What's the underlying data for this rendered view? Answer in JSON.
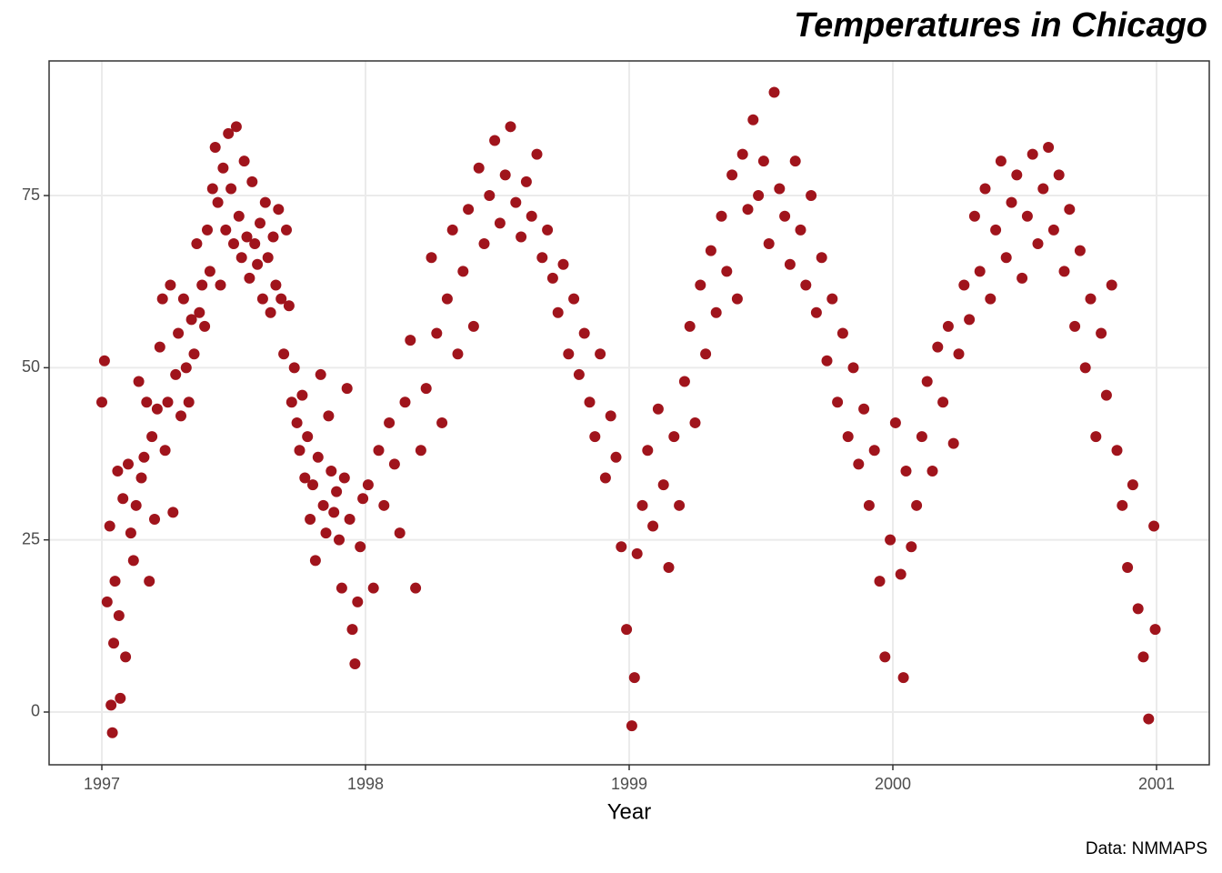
{
  "chart_data": {
    "type": "scatter",
    "title": "Temperatures in Chicago",
    "x_label": "Year",
    "caption": "Data: NMMAPS",
    "color": "#a0141c",
    "grid": true,
    "xlim": [
      1996.8,
      2001.2
    ],
    "ylim": [
      -7.66,
      94.55
    ],
    "xticks": [
      1997,
      1998,
      1999,
      2000,
      2001
    ],
    "yticks": [
      0,
      25,
      50,
      75
    ],
    "x": [
      1997.0,
      1997.01,
      1997.02,
      1997.03,
      1997.035,
      1997.04,
      1997.045,
      1997.05,
      1997.06,
      1997.065,
      1997.07,
      1997.08,
      1997.09,
      1997.1,
      1997.11,
      1997.12,
      1997.13,
      1997.14,
      1997.15,
      1997.16,
      1997.17,
      1997.18,
      1997.19,
      1997.2,
      1997.21,
      1997.22,
      1997.23,
      1997.24,
      1997.25,
      1997.26,
      1997.27,
      1997.28,
      1997.29,
      1997.3,
      1997.31,
      1997.32,
      1997.33,
      1997.34,
      1997.35,
      1997.36,
      1997.37,
      1997.38,
      1997.39,
      1997.4,
      1997.41,
      1997.42,
      1997.43,
      1997.44,
      1997.45,
      1997.46,
      1997.47,
      1997.48,
      1997.49,
      1997.5,
      1997.51,
      1997.52,
      1997.53,
      1997.54,
      1997.55,
      1997.56,
      1997.57,
      1997.58,
      1997.59,
      1997.6,
      1997.61,
      1997.62,
      1997.63,
      1997.64,
      1997.65,
      1997.66,
      1997.67,
      1997.68,
      1997.69,
      1997.7,
      1997.71,
      1997.72,
      1997.73,
      1997.74,
      1997.75,
      1997.76,
      1997.77,
      1997.78,
      1997.79,
      1997.8,
      1997.81,
      1997.82,
      1997.83,
      1997.84,
      1997.85,
      1997.86,
      1997.87,
      1997.88,
      1997.89,
      1997.9,
      1997.91,
      1997.92,
      1997.93,
      1997.94,
      1997.95,
      1997.96,
      1997.97,
      1997.98,
      1997.99,
      1998.01,
      1998.03,
      1998.05,
      1998.07,
      1998.09,
      1998.11,
      1998.13,
      1998.15,
      1998.17,
      1998.19,
      1998.21,
      1998.23,
      1998.25,
      1998.27,
      1998.29,
      1998.31,
      1998.33,
      1998.35,
      1998.37,
      1998.39,
      1998.41,
      1998.43,
      1998.45,
      1998.47,
      1998.49,
      1998.51,
      1998.53,
      1998.55,
      1998.57,
      1998.59,
      1998.61,
      1998.63,
      1998.65,
      1998.67,
      1998.69,
      1998.71,
      1998.73,
      1998.75,
      1998.77,
      1998.79,
      1998.81,
      1998.83,
      1998.85,
      1998.87,
      1998.89,
      1998.91,
      1998.93,
      1998.95,
      1998.97,
      1998.99,
      1999.01,
      1999.02,
      1999.03,
      1999.05,
      1999.07,
      1999.09,
      1999.11,
      1999.13,
      1999.15,
      1999.17,
      1999.19,
      1999.21,
      1999.23,
      1999.25,
      1999.27,
      1999.29,
      1999.31,
      1999.33,
      1999.35,
      1999.37,
      1999.39,
      1999.41,
      1999.43,
      1999.45,
      1999.47,
      1999.49,
      1999.51,
      1999.53,
      1999.55,
      1999.57,
      1999.59,
      1999.61,
      1999.63,
      1999.65,
      1999.67,
      1999.69,
      1999.71,
      1999.73,
      1999.75,
      1999.77,
      1999.79,
      1999.81,
      1999.83,
      1999.85,
      1999.87,
      1999.89,
      1999.91,
      1999.93,
      1999.95,
      1999.97,
      1999.99,
      2000.01,
      2000.03,
      2000.04,
      2000.05,
      2000.07,
      2000.09,
      2000.11,
      2000.13,
      2000.15,
      2000.17,
      2000.19,
      2000.21,
      2000.23,
      2000.25,
      2000.27,
      2000.29,
      2000.31,
      2000.33,
      2000.35,
      2000.37,
      2000.39,
      2000.41,
      2000.43,
      2000.45,
      2000.47,
      2000.49,
      2000.51,
      2000.53,
      2000.55,
      2000.57,
      2000.59,
      2000.61,
      2000.63,
      2000.65,
      2000.67,
      2000.69,
      2000.71,
      2000.73,
      2000.75,
      2000.77,
      2000.79,
      2000.81,
      2000.83,
      2000.85,
      2000.87,
      2000.89,
      2000.91,
      2000.93,
      2000.95,
      2000.97,
      2000.99,
      2000.995
    ],
    "values": [
      45,
      51,
      16,
      27,
      1,
      -3,
      10,
      19,
      35,
      14,
      2,
      31,
      8,
      36,
      26,
      22,
      30,
      48,
      34,
      37,
      45,
      19,
      40,
      28,
      44,
      53,
      60,
      38,
      45,
      62,
      29,
      49,
      55,
      43,
      60,
      50,
      45,
      57,
      52,
      68,
      58,
      62,
      56,
      70,
      64,
      76,
      82,
      74,
      62,
      79,
      70,
      84,
      76,
      68,
      85,
      72,
      66,
      80,
      69,
      63,
      77,
      68,
      65,
      71,
      60,
      74,
      66,
      58,
      69,
      62,
      73,
      60,
      52,
      70,
      59,
      45,
      50,
      42,
      38,
      46,
      34,
      40,
      28,
      33,
      22,
      37,
      49,
      30,
      26,
      43,
      35,
      29,
      32,
      25,
      18,
      34,
      47,
      28,
      12,
      7,
      16,
      24,
      31,
      33,
      18,
      38,
      30,
      42,
      36,
      26,
      45,
      54,
      18,
      38,
      47,
      66,
      55,
      42,
      60,
      70,
      52,
      64,
      73,
      56,
      79,
      68,
      75,
      83,
      71,
      78,
      85,
      74,
      69,
      77,
      72,
      81,
      66,
      70,
      63,
      58,
      65,
      52,
      60,
      49,
      55,
      45,
      40,
      52,
      34,
      43,
      37,
      24,
      12,
      -2,
      5,
      23,
      30,
      38,
      27,
      44,
      33,
      21,
      40,
      30,
      48,
      56,
      42,
      62,
      52,
      67,
      58,
      72,
      64,
      78,
      60,
      81,
      73,
      86,
      75,
      80,
      68,
      90,
      76,
      72,
      65,
      80,
      70,
      62,
      75,
      58,
      66,
      51,
      60,
      45,
      55,
      40,
      50,
      36,
      44,
      30,
      38,
      19,
      8,
      25,
      42,
      20,
      5,
      35,
      24,
      30,
      40,
      48,
      35,
      53,
      45,
      56,
      39,
      52,
      62,
      57,
      72,
      64,
      76,
      60,
      70,
      80,
      66,
      74,
      78,
      63,
      72,
      81,
      68,
      76,
      82,
      70,
      78,
      64,
      73,
      56,
      67,
      50,
      60,
      40,
      55,
      46,
      62,
      38,
      30,
      21,
      33,
      15,
      8,
      -1,
      27,
      12
    ]
  }
}
